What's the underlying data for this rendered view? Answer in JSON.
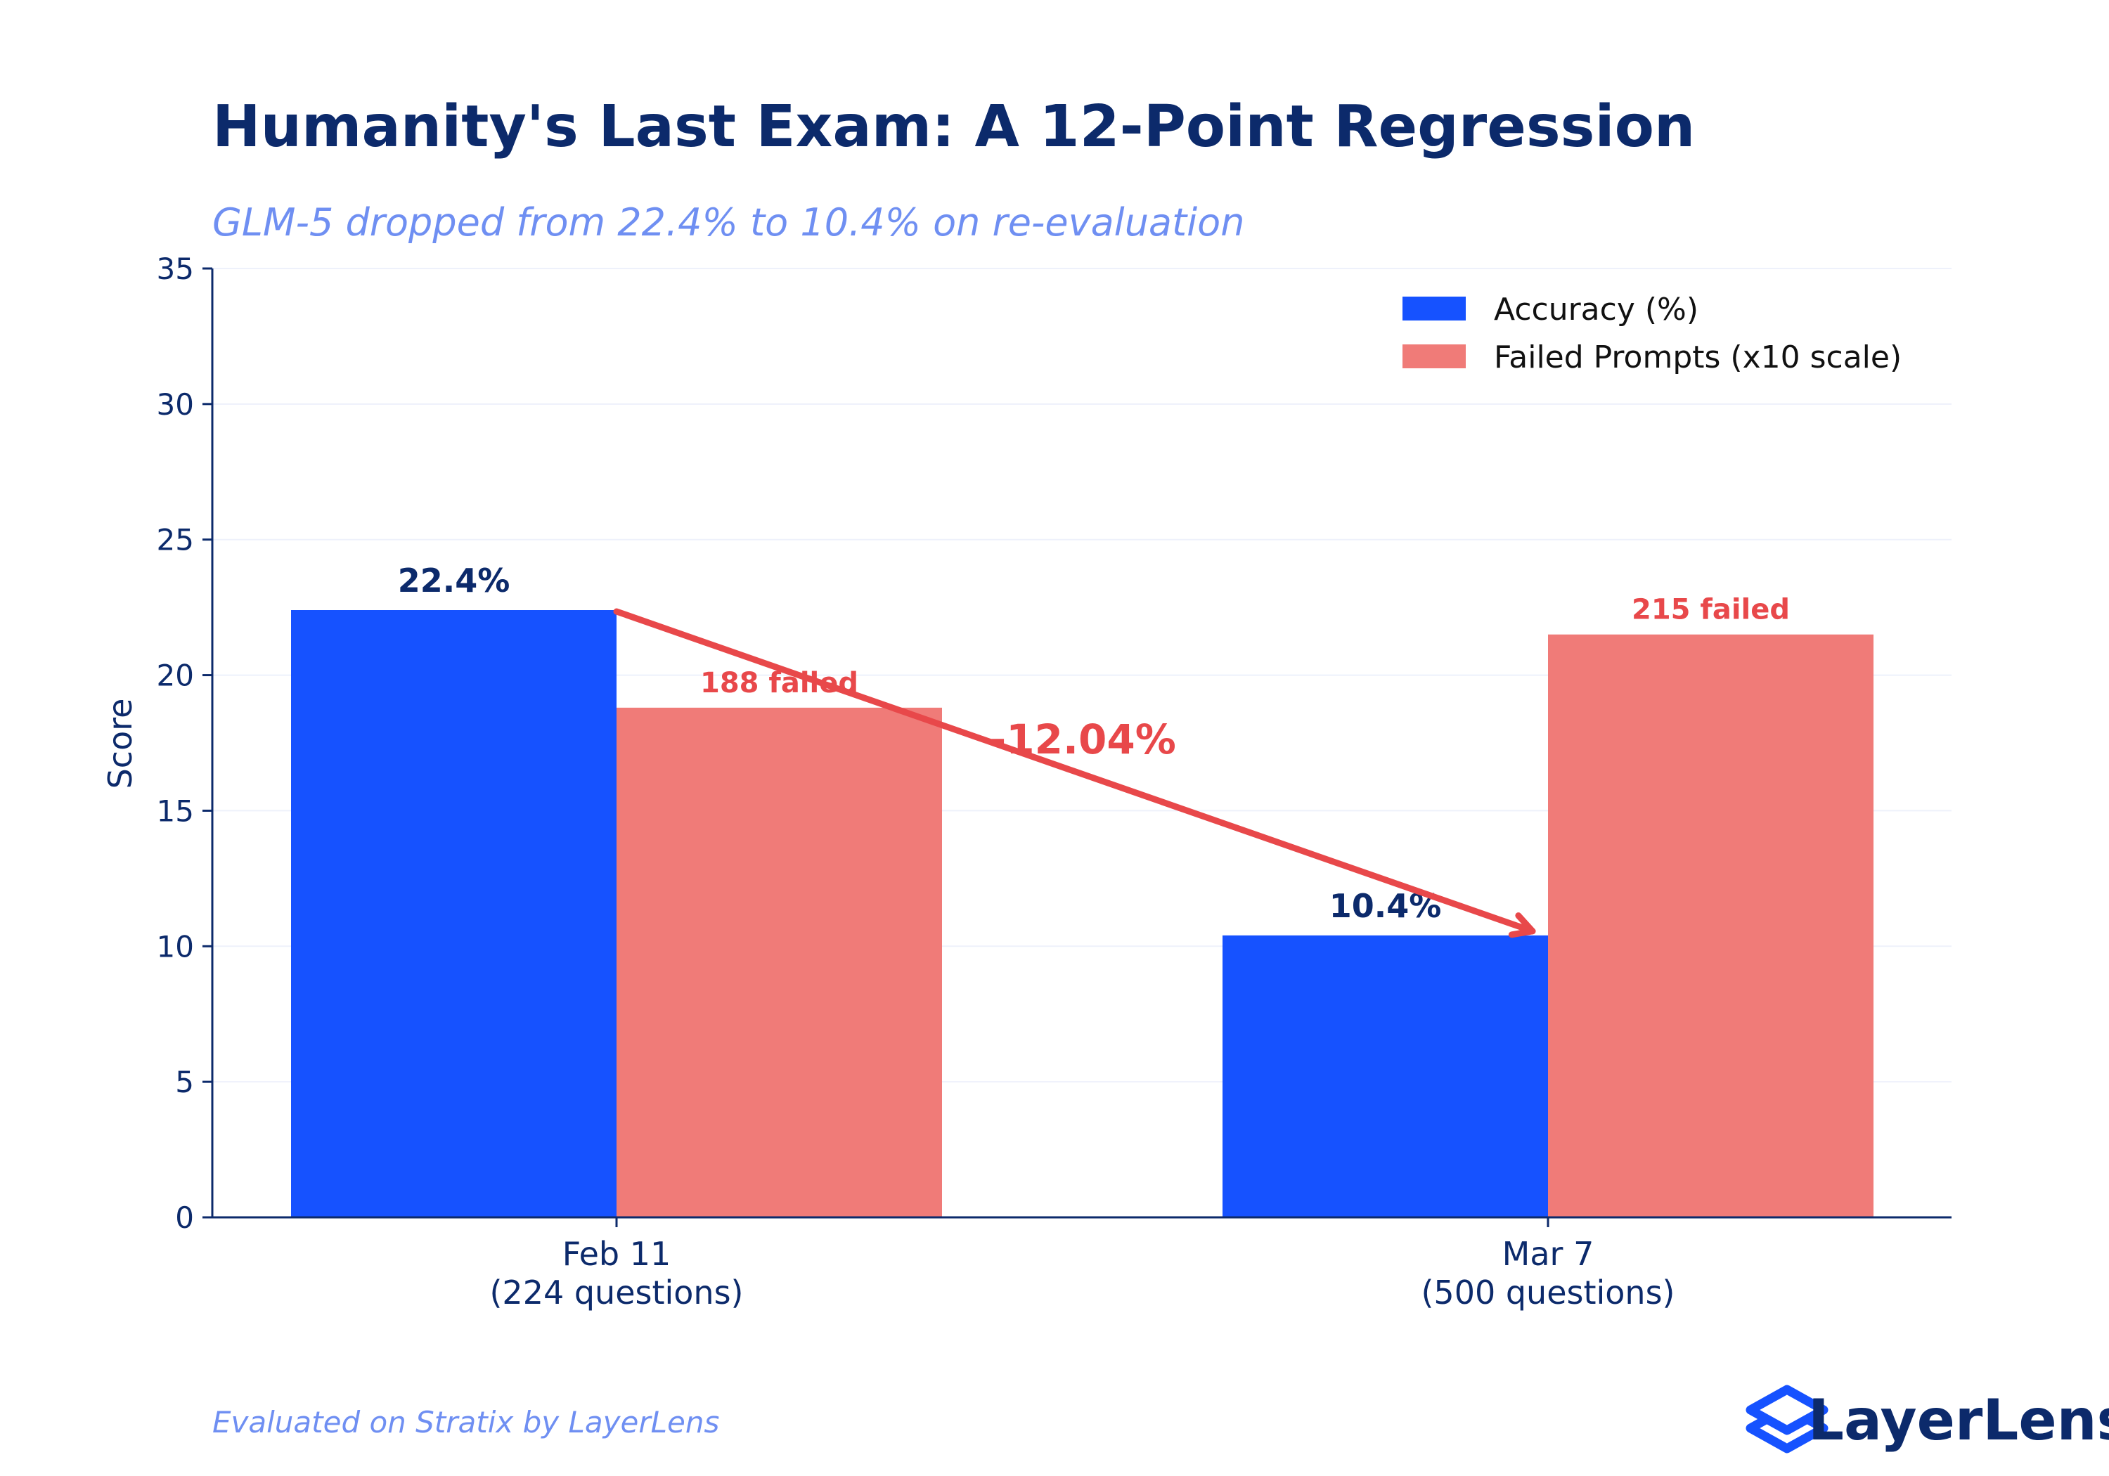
{
  "chart_data": {
    "type": "bar",
    "title": "Humanity's Last Exam: A 12-Point Regression",
    "subtitle": "GLM-5 dropped from 22.4% to 10.4% on re-evaluation",
    "ylabel": "Score",
    "xlabel": "",
    "ylim": [
      0,
      35
    ],
    "yticks": [
      0,
      5,
      10,
      15,
      20,
      25,
      30,
      35
    ],
    "grid": true,
    "categories": [
      [
        "Feb 11",
        "(224 questions)"
      ],
      [
        "Mar 7",
        "(500 questions)"
      ]
    ],
    "series": [
      {
        "name": "Accuracy (%)",
        "color": "#1652ff",
        "values": [
          22.4,
          10.4
        ],
        "labels": [
          "22.4%",
          "10.4%"
        ],
        "label_color": "#0c2a6b"
      },
      {
        "name": "Failed Prompts (x10 scale)",
        "color": "#f07b78",
        "values": [
          18.8,
          21.5
        ],
        "labels": [
          "188 failed",
          "215 failed"
        ],
        "label_color": "#e8484a"
      }
    ],
    "legend_position": "top-right",
    "annotation": {
      "text": "-12.04%",
      "color": "#e8484a"
    }
  },
  "footer": "Evaluated on Stratix by LayerLens",
  "brand": {
    "name": "LayerLens",
    "color": "#1652ff",
    "text_color": "#0c2a6b"
  }
}
